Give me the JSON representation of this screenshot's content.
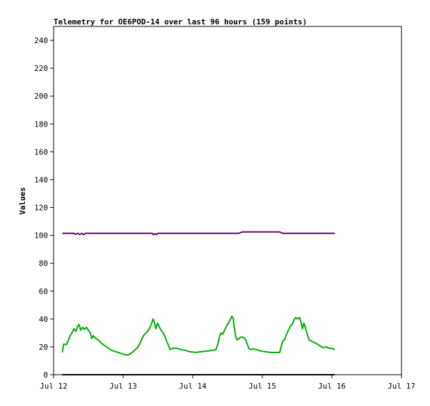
{
  "chart_data": {
    "type": "line",
    "title": "Telemetry for OE6POD-14 over last 96 hours (159 points)",
    "xlabel": "",
    "ylabel": "Values",
    "ylim": [
      0,
      250
    ],
    "yticks": [
      0,
      20,
      40,
      60,
      80,
      100,
      120,
      140,
      160,
      180,
      200,
      220,
      240
    ],
    "xlim": [
      "2023-07-12 00:00",
      "2023-07-17 00:00"
    ],
    "xticks": [
      {
        "label": "Jul 12",
        "x": "2023-07-12 00:00"
      },
      {
        "label": "Jul 13",
        "x": "2023-07-13 00:00"
      },
      {
        "label": "Jul 14",
        "x": "2023-07-14 00:00"
      },
      {
        "label": "Jul 15",
        "x": "2023-07-15 00:00"
      },
      {
        "label": "Jul 16",
        "x": "2023-07-16 00:00"
      },
      {
        "label": "Jul 17",
        "x": "2023-07-17 00:00"
      }
    ],
    "grid": false,
    "legend": "none",
    "series": [
      {
        "color": "#660066",
        "points": [
          [
            "2023-07-12 03:00",
            101.5
          ],
          [
            "2023-07-12 07:00",
            101.5
          ],
          [
            "2023-07-12 07:40",
            100.8
          ],
          [
            "2023-07-12 08:20",
            101.5
          ],
          [
            "2023-07-12 09:00",
            100.6
          ],
          [
            "2023-07-12 09:40",
            101.4
          ],
          [
            "2023-07-12 10:20",
            100.6
          ],
          [
            "2023-07-12 11:00",
            101.5
          ],
          [
            "2023-07-13 10:00",
            101.5
          ],
          [
            "2023-07-13 10:30",
            100.5
          ],
          [
            "2023-07-13 11:00",
            101.3
          ],
          [
            "2023-07-13 11:30",
            100.6
          ],
          [
            "2023-07-13 12:00",
            101.5
          ],
          [
            "2023-07-14 16:00",
            101.5
          ],
          [
            "2023-07-14 17:00",
            102.5
          ],
          [
            "2023-07-15 06:00",
            102.5
          ],
          [
            "2023-07-15 07:00",
            101.5
          ],
          [
            "2023-07-16 01:00",
            101.5
          ]
        ]
      },
      {
        "color": "#00aa00",
        "points": [
          [
            "2023-07-12 03:00",
            16
          ],
          [
            "2023-07-12 03:30",
            22
          ],
          [
            "2023-07-12 04:20",
            21.5
          ],
          [
            "2023-07-12 05:00",
            24
          ],
          [
            "2023-07-12 05:40",
            28
          ],
          [
            "2023-07-12 06:20",
            30
          ],
          [
            "2023-07-12 07:00",
            33
          ],
          [
            "2023-07-12 07:40",
            31
          ],
          [
            "2023-07-12 08:20",
            35
          ],
          [
            "2023-07-12 08:50",
            36
          ],
          [
            "2023-07-12 09:20",
            32
          ],
          [
            "2023-07-12 10:00",
            34
          ],
          [
            "2023-07-12 10:40",
            32.5
          ],
          [
            "2023-07-12 11:20",
            34
          ],
          [
            "2023-07-12 12:00",
            32
          ],
          [
            "2023-07-12 12:40",
            30
          ],
          [
            "2023-07-12 13:10",
            26
          ],
          [
            "2023-07-12 13:40",
            28
          ],
          [
            "2023-07-12 14:20",
            26.5
          ],
          [
            "2023-07-12 15:20",
            25
          ],
          [
            "2023-07-12 16:20",
            23
          ],
          [
            "2023-07-12 17:30",
            21
          ],
          [
            "2023-07-12 18:40",
            19.5
          ],
          [
            "2023-07-12 20:00",
            17.5
          ],
          [
            "2023-07-12 21:30",
            16.5
          ],
          [
            "2023-07-12 23:00",
            15.5
          ],
          [
            "2023-07-13 00:30",
            14.5
          ],
          [
            "2023-07-13 01:30",
            14
          ],
          [
            "2023-07-13 02:30",
            15
          ],
          [
            "2023-07-13 03:40",
            17
          ],
          [
            "2023-07-13 05:00",
            19.5
          ],
          [
            "2023-07-13 05:40",
            22
          ],
          [
            "2023-07-13 06:20",
            25
          ],
          [
            "2023-07-13 07:00",
            28
          ],
          [
            "2023-07-13 07:40",
            29.5
          ],
          [
            "2023-07-13 08:20",
            31
          ],
          [
            "2023-07-13 09:00",
            33
          ],
          [
            "2023-07-13 09:30",
            35
          ],
          [
            "2023-07-13 10:00",
            38
          ],
          [
            "2023-07-13 10:20",
            40
          ],
          [
            "2023-07-13 10:50",
            37
          ],
          [
            "2023-07-13 11:20",
            33
          ],
          [
            "2023-07-13 11:50",
            37
          ],
          [
            "2023-07-13 12:20",
            35
          ],
          [
            "2023-07-13 13:00",
            32
          ],
          [
            "2023-07-13 13:40",
            30.5
          ],
          [
            "2023-07-13 14:20",
            28
          ],
          [
            "2023-07-13 15:00",
            24
          ],
          [
            "2023-07-13 15:40",
            21
          ],
          [
            "2023-07-13 16:10",
            18
          ],
          [
            "2023-07-13 17:00",
            19
          ],
          [
            "2023-07-13 18:30",
            19
          ],
          [
            "2023-07-13 20:00",
            18
          ],
          [
            "2023-07-13 21:30",
            17.5
          ],
          [
            "2023-07-13 23:00",
            16.5
          ],
          [
            "2023-07-14 01:00",
            16
          ],
          [
            "2023-07-14 03:00",
            16.5
          ],
          [
            "2023-07-14 05:00",
            17
          ],
          [
            "2023-07-14 07:00",
            17.5
          ],
          [
            "2023-07-14 08:00",
            18
          ],
          [
            "2023-07-14 08:40",
            22
          ],
          [
            "2023-07-14 09:20",
            28
          ],
          [
            "2023-07-14 09:50",
            30
          ],
          [
            "2023-07-14 10:20",
            29
          ],
          [
            "2023-07-14 11:00",
            32
          ],
          [
            "2023-07-14 11:40",
            35
          ],
          [
            "2023-07-14 12:20",
            37
          ],
          [
            "2023-07-14 13:00",
            40
          ],
          [
            "2023-07-14 13:30",
            42
          ],
          [
            "2023-07-14 14:00",
            40
          ],
          [
            "2023-07-14 14:20",
            34
          ],
          [
            "2023-07-14 14:50",
            27
          ],
          [
            "2023-07-14 15:20",
            25
          ],
          [
            "2023-07-14 16:00",
            26
          ],
          [
            "2023-07-14 16:40",
            27
          ],
          [
            "2023-07-14 17:20",
            27
          ],
          [
            "2023-07-14 18:00",
            26
          ],
          [
            "2023-07-14 18:40",
            23
          ],
          [
            "2023-07-14 19:20",
            19
          ],
          [
            "2023-07-14 20:00",
            18
          ],
          [
            "2023-07-14 21:00",
            18.5
          ],
          [
            "2023-07-14 22:00",
            18
          ],
          [
            "2023-07-14 23:30",
            17
          ],
          [
            "2023-07-15 01:00",
            16.5
          ],
          [
            "2023-07-15 03:00",
            16
          ],
          [
            "2023-07-15 05:00",
            16
          ],
          [
            "2023-07-15 06:00",
            16
          ],
          [
            "2023-07-15 06:30",
            20
          ],
          [
            "2023-07-15 07:00",
            24
          ],
          [
            "2023-07-15 07:40",
            25
          ],
          [
            "2023-07-15 08:20",
            29
          ],
          [
            "2023-07-15 09:00",
            32
          ],
          [
            "2023-07-15 09:40",
            35
          ],
          [
            "2023-07-15 10:20",
            36
          ],
          [
            "2023-07-15 10:50",
            39
          ],
          [
            "2023-07-15 11:30",
            41
          ],
          [
            "2023-07-15 12:10",
            40
          ],
          [
            "2023-07-15 12:50",
            41
          ],
          [
            "2023-07-15 13:20",
            38
          ],
          [
            "2023-07-15 13:50",
            33
          ],
          [
            "2023-07-15 14:20",
            37
          ],
          [
            "2023-07-15 14:50",
            34
          ],
          [
            "2023-07-15 15:30",
            29
          ],
          [
            "2023-07-15 16:10",
            25
          ],
          [
            "2023-07-15 17:00",
            24
          ],
          [
            "2023-07-15 18:00",
            23
          ],
          [
            "2023-07-15 19:00",
            22
          ],
          [
            "2023-07-15 20:00",
            20.5
          ],
          [
            "2023-07-15 21:00",
            19.5
          ],
          [
            "2023-07-15 22:00",
            20
          ],
          [
            "2023-07-15 23:00",
            19
          ],
          [
            "2023-07-16 00:00",
            19
          ],
          [
            "2023-07-16 01:00",
            18
          ]
        ]
      },
      {
        "color": "#000000",
        "points": [
          [
            "2023-07-12 03:00",
            0
          ],
          [
            "2023-07-16 01:00",
            0
          ]
        ]
      }
    ]
  }
}
